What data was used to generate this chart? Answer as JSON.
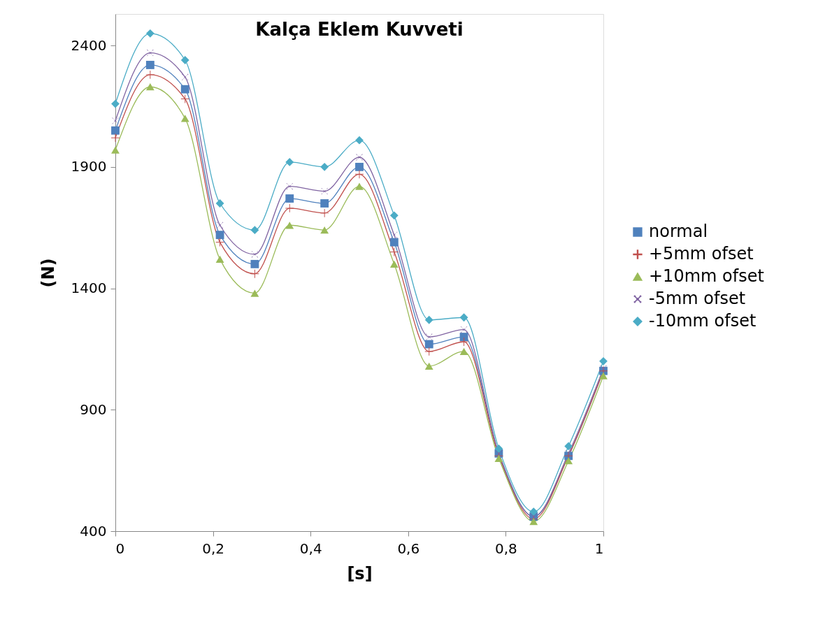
{
  "chart_data": {
    "type": "line",
    "title": "Kalça Eklem Kuvveti",
    "xlabel": "[s]",
    "ylabel": "(N)",
    "x": [
      0,
      0.0714,
      0.1429,
      0.2143,
      0.2857,
      0.3571,
      0.4286,
      0.5,
      0.5714,
      0.6429,
      0.7143,
      0.7857,
      0.8571,
      0.9286,
      1
    ],
    "xlim": [
      0,
      1
    ],
    "xticks": [
      0,
      {
        "value": 0.2,
        "label": "0,2"
      },
      {
        "value": 0.4,
        "label": "0,4"
      },
      {
        "value": 0.6,
        "label": "0,6"
      },
      {
        "value": 0.8,
        "label": "0,8"
      },
      1
    ],
    "ylim": [
      400,
      2530
    ],
    "yticks": [
      400,
      900,
      1400,
      1900,
      2400
    ],
    "grid": false,
    "legend": "right",
    "line_style": "solid",
    "series": [
      {
        "name": "normal",
        "color": "#4f81bd",
        "marker": "square",
        "values": [
          2050,
          2320,
          2220,
          1620,
          1500,
          1770,
          1750,
          1900,
          1590,
          1170,
          1200,
          720,
          460,
          710,
          1060
        ]
      },
      {
        "name": "+5mm ofset",
        "color": "#c0504d",
        "marker": "cross",
        "values": [
          2020,
          2280,
          2180,
          1590,
          1460,
          1730,
          1710,
          1870,
          1550,
          1140,
          1180,
          710,
          450,
          710,
          1060
        ]
      },
      {
        "name": "+10mm ofset",
        "color": "#9bbb59",
        "marker": "triangle",
        "values": [
          1970,
          2230,
          2100,
          1520,
          1380,
          1660,
          1640,
          1820,
          1500,
          1080,
          1140,
          700,
          440,
          690,
          1040
        ]
      },
      {
        "name": "-5mm ofset",
        "color": "#8064a2",
        "marker": "x",
        "values": [
          2090,
          2370,
          2270,
          1660,
          1540,
          1820,
          1800,
          1940,
          1620,
          1200,
          1230,
          720,
          460,
          720,
          1070
        ]
      },
      {
        "name": "-10mm ofset",
        "color": "#4bacc6",
        "marker": "diamond",
        "values": [
          2160,
          2450,
          2340,
          1750,
          1640,
          1920,
          1900,
          2010,
          1700,
          1270,
          1280,
          740,
          480,
          750,
          1100
        ]
      }
    ]
  }
}
